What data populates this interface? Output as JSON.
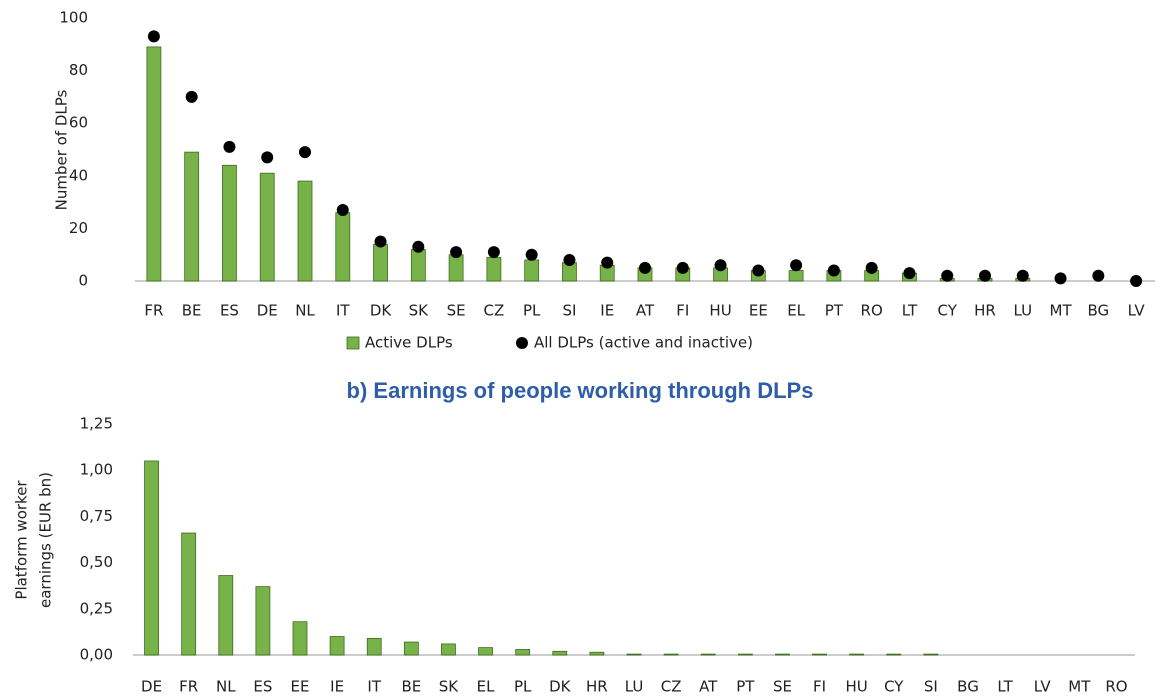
{
  "chart_data": [
    {
      "type": "bar",
      "ylabel": [
        "Number of DLPs"
      ],
      "categories": [
        "FR",
        "BE",
        "ES",
        "DE",
        "NL",
        "IT",
        "DK",
        "SK",
        "SE",
        "CZ",
        "PL",
        "SI",
        "IE",
        "AT",
        "FI",
        "HU",
        "EE",
        "EL",
        "PT",
        "RO",
        "LT",
        "CY",
        "HR",
        "LU",
        "MT",
        "BG",
        "LV"
      ],
      "series": [
        {
          "name": "Active DLPs",
          "type": "bar",
          "color": "#78b34a",
          "values": [
            89,
            49,
            44,
            41,
            38,
            26,
            14,
            12,
            10,
            9,
            8,
            7,
            6,
            5,
            5,
            5,
            4,
            4,
            4,
            4,
            3,
            1,
            1,
            1,
            0,
            0,
            0
          ]
        },
        {
          "name": "All DLPs (active and inactive)",
          "type": "scatter",
          "color": "#000000",
          "values": [
            93,
            70,
            51,
            47,
            49,
            27,
            15,
            13,
            11,
            11,
            10,
            8,
            7,
            5,
            5,
            6,
            4,
            6,
            4,
            5,
            3,
            2,
            2,
            2,
            1,
            2,
            0
          ]
        }
      ],
      "ylim": [
        0,
        100
      ],
      "yticks": [
        0,
        20,
        40,
        60,
        80,
        100
      ],
      "grid": false,
      "legend": "bottom"
    },
    {
      "type": "bar",
      "title": "b) Earnings of people working through DLPs",
      "ylabel": [
        "Platform worker",
        "earnings (EUR bn)"
      ],
      "categories": [
        "DE",
        "FR",
        "NL",
        "ES",
        "EE",
        "IE",
        "IT",
        "BE",
        "SK",
        "EL",
        "PL",
        "DK",
        "HR",
        "LU",
        "CZ",
        "AT",
        "PT",
        "SE",
        "FI",
        "HU",
        "CY",
        "SI",
        "BG",
        "LT",
        "LV",
        "MT",
        "RO"
      ],
      "series": [
        {
          "name": "Earnings",
          "type": "bar",
          "color": "#78b34a",
          "values": [
            1.05,
            0.66,
            0.43,
            0.37,
            0.18,
            0.1,
            0.09,
            0.07,
            0.06,
            0.04,
            0.03,
            0.02,
            0.015,
            0.005,
            0.005,
            0.005,
            0.005,
            0.005,
            0.005,
            0.005,
            0.005,
            0.005,
            0,
            0,
            0,
            0,
            0
          ]
        }
      ],
      "ylim": [
        0,
        1.25
      ],
      "yticks": [
        {
          "value": 0,
          "label": "0,00"
        },
        {
          "value": 0.25,
          "label": "0,25"
        },
        {
          "value": 0.5,
          "label": "0,50"
        },
        {
          "value": 0.75,
          "label": "0,75"
        },
        {
          "value": 1,
          "label": "1,00"
        },
        {
          "value": 1.25,
          "label": "1,25"
        }
      ],
      "grid": false
    }
  ]
}
